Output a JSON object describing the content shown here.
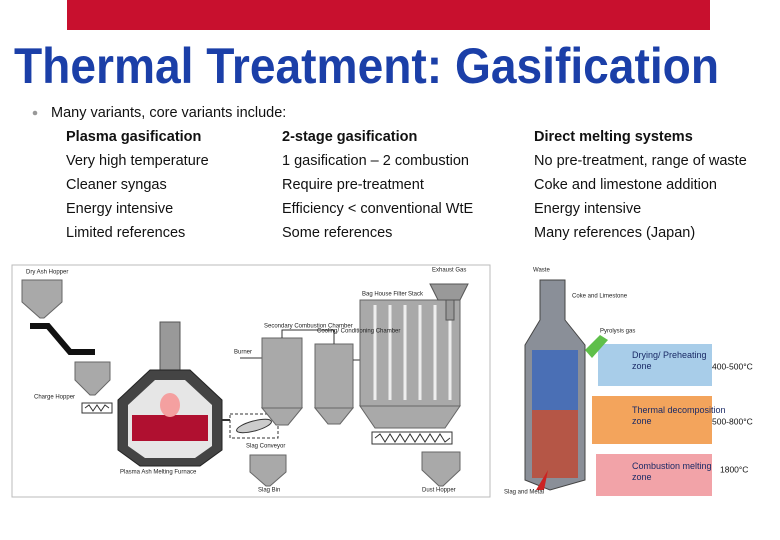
{
  "header": {
    "title": "Thermal Treatment: Gasification"
  },
  "intro": "Many variants, core variants include:",
  "columns": [
    {
      "heading": "Plasma gasification",
      "items": [
        "Very high temperature",
        "Cleaner syngas",
        "Energy intensive",
        "Limited references"
      ]
    },
    {
      "heading": "2-stage gasification",
      "items": [
        "1 gasification – 2 combustion",
        "Require pre-treatment",
        "Efficiency < conventional WtE",
        "Some references"
      ]
    },
    {
      "heading": "Direct melting systems",
      "items": [
        "No pre-treatment, range of waste",
        "Coke and limestone addition",
        "Energy intensive",
        "Many references (Japan)"
      ]
    }
  ],
  "left_diagram": {
    "labels": [
      "Dry Ash Hopper",
      "Exhaust Gas",
      "Stack",
      "Bag House Filter",
      "Secondary Combustion Chamber",
      "Cooling/ Conditioning Chamber",
      "Burner",
      "Charge Hopper",
      "Slag Conveyor",
      "Plasma Ash Melting Furnace",
      "Slag Bin",
      "Dust Hopper"
    ]
  },
  "right_diagram": {
    "labels": [
      "Waste",
      "Coke and Limestone",
      "Pyrolysis gas",
      "Slag and Metal"
    ],
    "zones": [
      "Drying/ Preheating zone",
      "Thermal decomposition zone",
      "Combustion melting zone"
    ],
    "temperatures": [
      "400-500°C",
      "500-800°C",
      "1800°C"
    ]
  }
}
